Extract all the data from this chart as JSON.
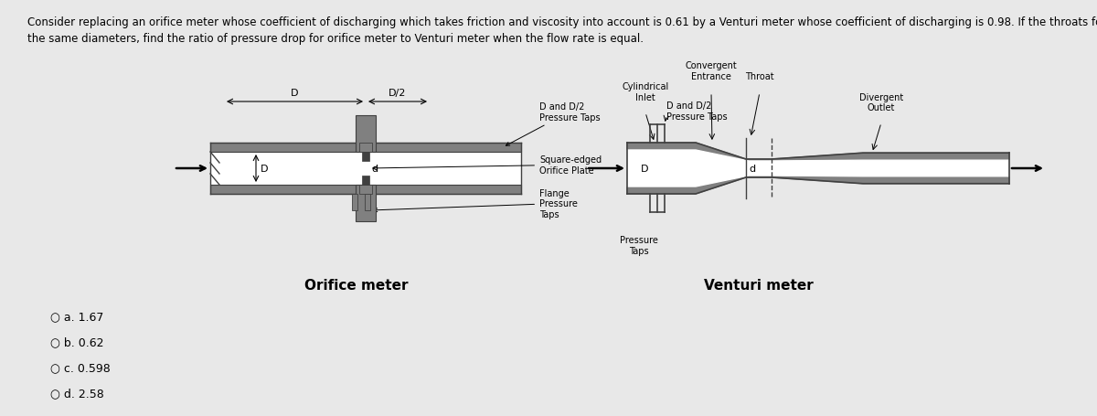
{
  "background_color": "#e8e8e8",
  "title_line1": "Consider replacing an orifice meter whose coefficient of discharging which takes friction and viscosity into account is 0.61 by a Venturi meter whose coefficient of discharging is 0.98. If the throats for both meters have",
  "title_line2": "the same diameters, find the ratio of pressure drop for orifice meter to Venturi meter when the flow rate is equal.",
  "title_fontsize": 8.5,
  "orifice_label": "Orifice meter",
  "venturi_label": "Venturi meter",
  "choices": [
    "○ a. 1.67",
    "○ b. 0.62",
    "○ c. 0.598",
    "○ d. 2.58"
  ],
  "choices_fontsize": 9,
  "label_fontsize": 11,
  "pipe_gray": "#808080",
  "pipe_dark": "#404040",
  "pipe_light": "#aaaaaa"
}
